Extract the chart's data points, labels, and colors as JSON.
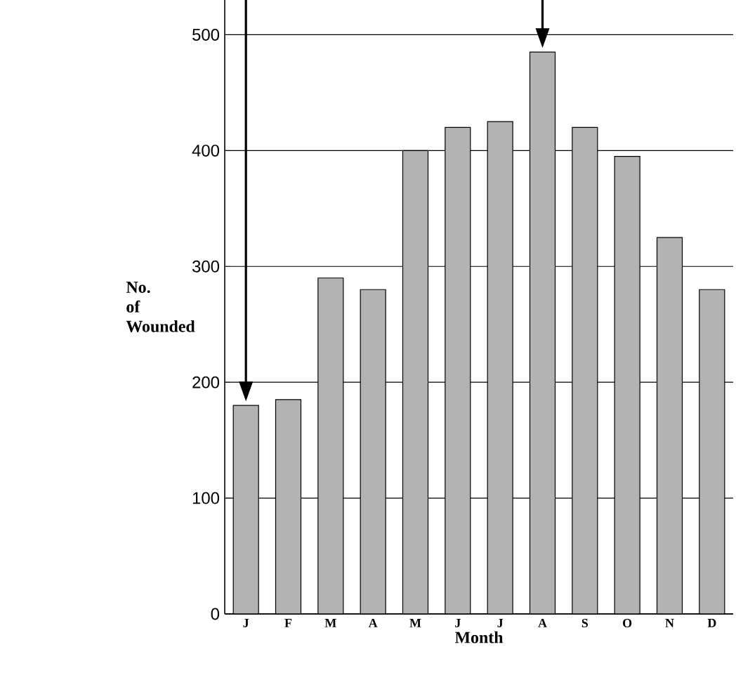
{
  "chart_data": {
    "type": "bar",
    "xlabel": "Month",
    "ylabel": "No. of Wounded",
    "categories": [
      "J",
      "F",
      "M",
      "A",
      "M",
      "J",
      "J",
      "A",
      "S",
      "O",
      "N",
      "D"
    ],
    "values": [
      180,
      185,
      290,
      280,
      400,
      420,
      425,
      485,
      420,
      395,
      325,
      280
    ],
    "color": "#b3b3b3",
    "ylim": [
      0,
      530
    ],
    "yticks": [
      0,
      100,
      200,
      300,
      400,
      500
    ],
    "grid": "y"
  }
}
